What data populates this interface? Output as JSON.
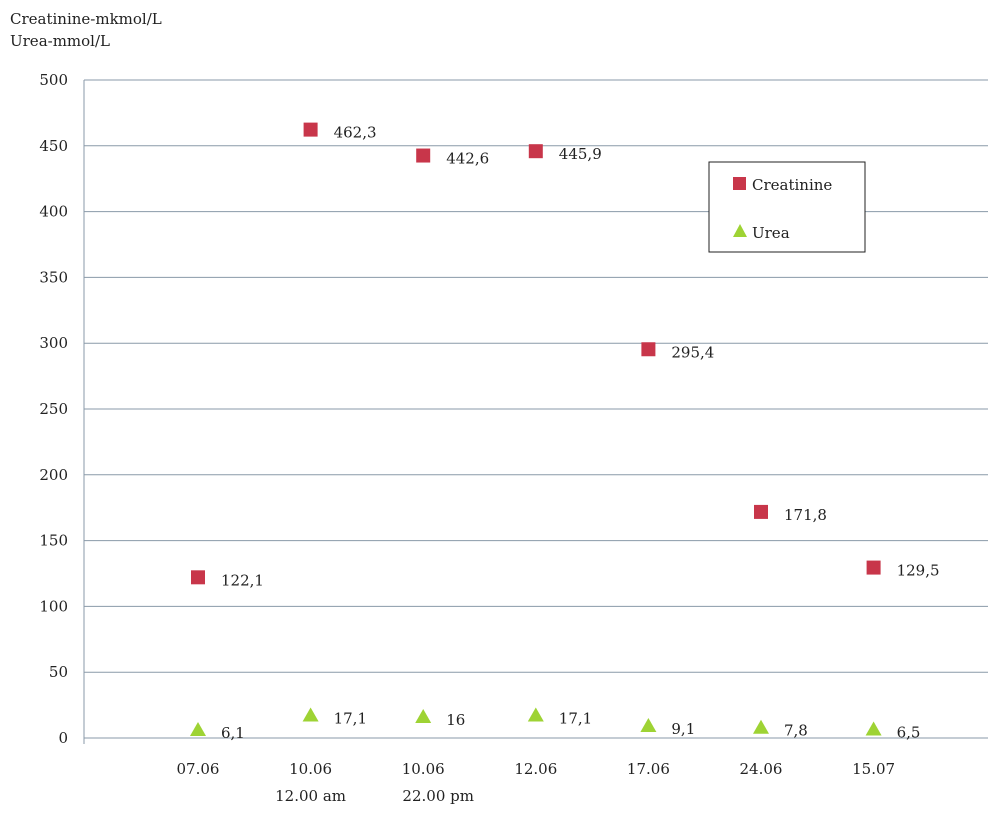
{
  "chart_data": {
    "type": "scatter",
    "ylabel_lines": [
      "Creatinine-mkmol/L",
      "Urea-mmol/L"
    ],
    "categories": [
      "07.06",
      "10.06",
      "10.06",
      "12.06",
      "17.06",
      "24.06",
      "15.07"
    ],
    "category_sublabels": [
      "",
      "12.00 am",
      "22.00 pm",
      "",
      "",
      "",
      ""
    ],
    "ylim": [
      0,
      500
    ],
    "yticks": [
      0,
      50,
      100,
      150,
      200,
      250,
      300,
      350,
      400,
      450,
      500
    ],
    "grid": true,
    "legend_position": "top-right",
    "series": [
      {
        "name": "Creatinine",
        "marker": "square",
        "color": "#c8364a",
        "values": [
          122.1,
          462.3,
          442.6,
          445.9,
          295.4,
          171.8,
          129.5
        ],
        "labels": [
          "122,1",
          "462,3",
          "442,6",
          "445,9",
          "295,4",
          "171,8",
          "129,5"
        ]
      },
      {
        "name": "Urea",
        "marker": "triangle",
        "color": "#9ed334",
        "values": [
          6.1,
          17.1,
          16,
          17.1,
          9.1,
          7.8,
          6.5
        ],
        "labels": [
          "6,1",
          "17,1",
          "16",
          "17,1",
          "9,1",
          "7,8",
          "6,5"
        ]
      }
    ]
  }
}
